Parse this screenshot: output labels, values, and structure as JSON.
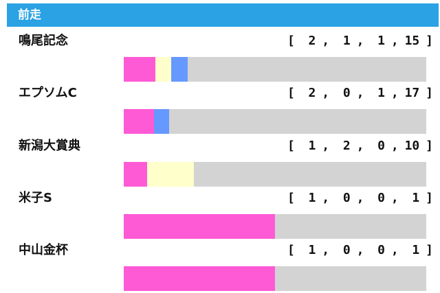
{
  "header": {
    "title": "前走"
  },
  "colors": {
    "first": "#ff5ad5",
    "second": "#ffffcc",
    "third": "#6699ff",
    "other": "#d3d3d3",
    "header_bg": "#2aa2e4"
  },
  "races": [
    {
      "name": "鳴尾記念",
      "record": [
        2,
        1,
        1,
        15
      ]
    },
    {
      "name": "エプソムC",
      "record": [
        2,
        0,
        1,
        17
      ]
    },
    {
      "name": "新潟大賞典",
      "record": [
        1,
        2,
        0,
        10
      ]
    },
    {
      "name": "米子S",
      "record": [
        1,
        0,
        0,
        1
      ]
    },
    {
      "name": "中山金杯",
      "record": [
        1,
        0,
        0,
        1
      ]
    }
  ]
}
